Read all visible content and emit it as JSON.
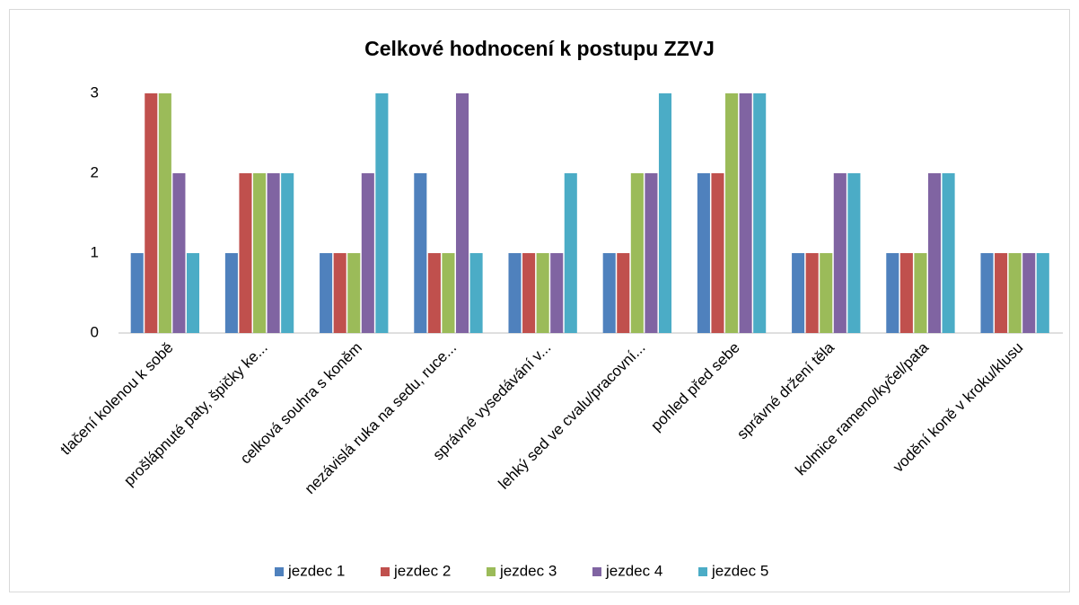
{
  "chart_data": {
    "type": "bar",
    "title": "Celkové hodnocení k postupu ZZVJ",
    "categories": [
      "tlačení kolenou k sobě",
      "prošlápnuté paty, špičky ke...",
      "celková souhra s koněm",
      "nezávislá ruka na sedu, ruce...",
      "správné vysedávání v...",
      "lehký sed ve cvalu/pracovní...",
      "pohled před sebe",
      "správné držení těla",
      "kolmice rameno/kyčel/pata",
      "vodění koně v kroku/klusu"
    ],
    "series": [
      {
        "name": "jezdec 1",
        "color": "#4f81bd",
        "values": [
          1,
          1,
          1,
          2,
          1,
          1,
          2,
          1,
          1,
          1
        ]
      },
      {
        "name": "jezdec 2",
        "color": "#c0504d",
        "values": [
          3,
          2,
          1,
          1,
          1,
          1,
          2,
          1,
          1,
          1
        ]
      },
      {
        "name": "jezdec 3",
        "color": "#9bbb59",
        "values": [
          3,
          2,
          1,
          1,
          1,
          2,
          3,
          1,
          1,
          1
        ]
      },
      {
        "name": "jezdec 4",
        "color": "#8064a2",
        "values": [
          2,
          2,
          2,
          3,
          1,
          2,
          3,
          2,
          2,
          1
        ]
      },
      {
        "name": "jezdec 5",
        "color": "#4bacc6",
        "values": [
          1,
          2,
          3,
          1,
          2,
          3,
          3,
          2,
          2,
          1
        ]
      }
    ],
    "ylim": [
      0,
      3
    ],
    "yticks": [
      0,
      1,
      2,
      3
    ],
    "grid": false,
    "legend": "bottom"
  }
}
